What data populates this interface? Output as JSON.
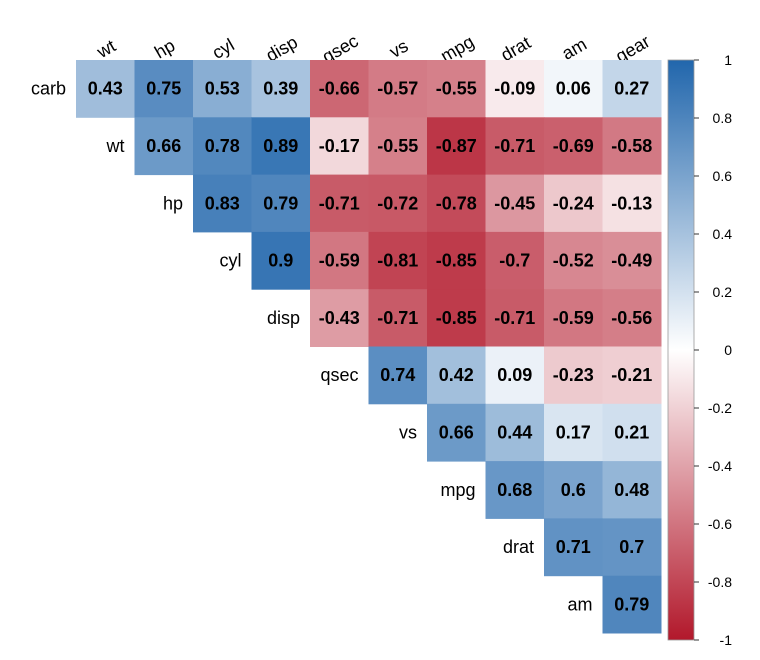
{
  "chart_data": {
    "type": "heatmap",
    "title": "",
    "layout": "upper-triangle",
    "column_labels": [
      "wt",
      "hp",
      "cyl",
      "disp",
      "qsec",
      "vs",
      "mpg",
      "drat",
      "am",
      "gear"
    ],
    "row_labels": [
      "carb",
      "wt",
      "hp",
      "cyl",
      "disp",
      "qsec",
      "vs",
      "mpg",
      "drat",
      "am"
    ],
    "rows": [
      [
        0.43,
        0.75,
        0.53,
        0.39,
        -0.66,
        -0.57,
        -0.55,
        -0.09,
        0.06,
        0.27
      ],
      [
        0.66,
        0.78,
        0.89,
        -0.17,
        -0.55,
        -0.87,
        -0.71,
        -0.69,
        -0.58
      ],
      [
        0.83,
        0.79,
        -0.71,
        -0.72,
        -0.78,
        -0.45,
        -0.24,
        -0.13
      ],
      [
        0.9,
        -0.59,
        -0.81,
        -0.85,
        -0.7,
        -0.52,
        -0.49
      ],
      [
        -0.43,
        -0.71,
        -0.85,
        -0.71,
        -0.59,
        -0.56
      ],
      [
        0.74,
        0.42,
        0.09,
        -0.23,
        -0.21
      ],
      [
        0.66,
        0.44,
        0.17,
        0.21
      ],
      [
        0.68,
        0.6,
        0.48
      ],
      [
        0.71,
        0.7
      ],
      [
        0.79
      ]
    ],
    "color_scale": {
      "range": [
        -1,
        1
      ],
      "low_color": "#b2182b",
      "mid_color": "#ffffff",
      "high_color": "#2166ac",
      "ticks": [
        "1",
        "0.8",
        "0.6",
        "0.4",
        "0.2",
        "0",
        "-0.2",
        "-0.4",
        "-0.6",
        "-0.8",
        "-1"
      ]
    },
    "legend_position": "right"
  }
}
